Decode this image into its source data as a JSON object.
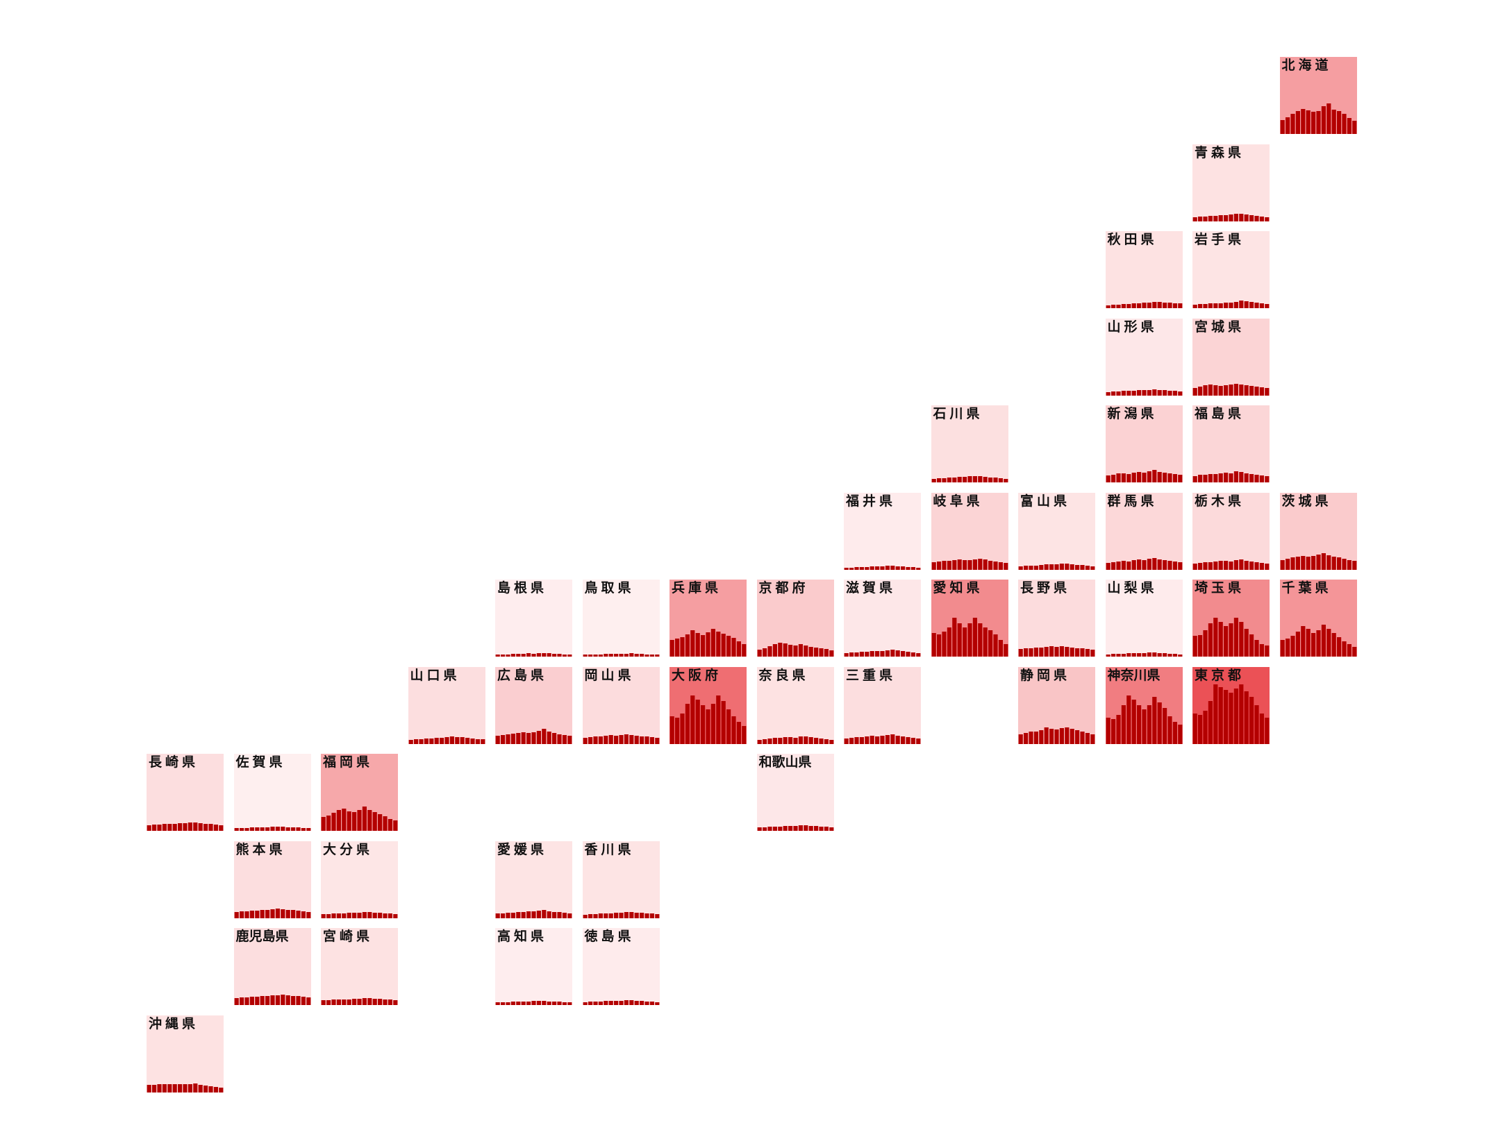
{
  "colors": {
    "bar": "#b30000",
    "text": "#111111"
  },
  "prefectures": [
    {
      "name": "北海道",
      "col": 13,
      "row": 0,
      "shade": 0.45,
      "series": [
        20,
        24,
        29,
        33,
        36,
        34,
        32,
        33,
        40,
        44,
        35,
        33,
        29,
        23,
        19
      ]
    },
    {
      "name": "青森県",
      "col": 12,
      "row": 1,
      "shade": 0.1,
      "series": [
        6,
        7,
        7,
        8,
        8,
        9,
        9,
        10,
        11,
        11,
        10,
        9,
        8,
        7,
        6
      ]
    },
    {
      "name": "秋田県",
      "col": 11,
      "row": 2,
      "shade": 0.1,
      "series": [
        4,
        5,
        5,
        6,
        6,
        7,
        7,
        8,
        8,
        9,
        9,
        8,
        8,
        7,
        7
      ]
    },
    {
      "name": "岩手県",
      "col": 12,
      "row": 2,
      "shade": 0.09,
      "series": [
        5,
        6,
        6,
        7,
        7,
        7,
        8,
        8,
        9,
        11,
        10,
        9,
        8,
        7,
        6
      ]
    },
    {
      "name": "山形県",
      "col": 11,
      "row": 3,
      "shade": 0.07,
      "series": [
        5,
        6,
        6,
        7,
        7,
        7,
        8,
        8,
        8,
        9,
        8,
        8,
        7,
        7,
        6
      ]
    },
    {
      "name": "宮城県",
      "col": 12,
      "row": 3,
      "shade": 0.17,
      "series": [
        11,
        13,
        15,
        16,
        15,
        14,
        15,
        16,
        17,
        16,
        15,
        14,
        13,
        12,
        11
      ]
    },
    {
      "name": "石川県",
      "col": 9,
      "row": 4,
      "shade": 0.11,
      "series": [
        5,
        6,
        6,
        7,
        7,
        8,
        8,
        9,
        9,
        9,
        8,
        7,
        7,
        6,
        5
      ]
    },
    {
      "name": "新潟県",
      "col": 11,
      "row": 4,
      "shade": 0.18,
      "series": [
        10,
        11,
        13,
        13,
        12,
        14,
        15,
        14,
        16,
        18,
        15,
        14,
        13,
        12,
        11
      ]
    },
    {
      "name": "福島県",
      "col": 12,
      "row": 4,
      "shade": 0.16,
      "series": [
        9,
        11,
        11,
        12,
        12,
        13,
        14,
        13,
        16,
        15,
        13,
        12,
        11,
        10,
        9
      ]
    },
    {
      "name": "福井県",
      "col": 8,
      "row": 5,
      "shade": 0.05,
      "series": [
        3,
        3,
        4,
        4,
        4,
        5,
        5,
        5,
        6,
        6,
        5,
        5,
        4,
        4,
        3
      ]
    },
    {
      "name": "岐阜県",
      "col": 9,
      "row": 5,
      "shade": 0.17,
      "series": [
        11,
        12,
        13,
        13,
        14,
        15,
        14,
        14,
        15,
        16,
        15,
        13,
        12,
        11,
        10
      ]
    },
    {
      "name": "富山県",
      "col": 10,
      "row": 5,
      "shade": 0.09,
      "series": [
        5,
        6,
        6,
        6,
        7,
        8,
        8,
        8,
        9,
        9,
        8,
        7,
        7,
        6,
        5
      ]
    },
    {
      "name": "群馬県",
      "col": 11,
      "row": 5,
      "shade": 0.15,
      "series": [
        10,
        11,
        12,
        13,
        12,
        14,
        15,
        14,
        16,
        17,
        15,
        14,
        13,
        12,
        11
      ]
    },
    {
      "name": "栃木県",
      "col": 12,
      "row": 5,
      "shade": 0.14,
      "series": [
        9,
        10,
        11,
        11,
        12,
        13,
        13,
        12,
        14,
        15,
        13,
        12,
        11,
        10,
        9
      ]
    },
    {
      "name": "茨城県",
      "col": 13,
      "row": 5,
      "shade": 0.22,
      "series": [
        14,
        16,
        18,
        19,
        20,
        19,
        20,
        22,
        24,
        21,
        19,
        18,
        16,
        14,
        13
      ]
    },
    {
      "name": "島根県",
      "col": 4,
      "row": 6,
      "shade": 0.04,
      "series": [
        3,
        3,
        3,
        4,
        4,
        4,
        5,
        4,
        5,
        5,
        5,
        4,
        4,
        3,
        3
      ]
    },
    {
      "name": "鳥取県",
      "col": 5,
      "row": 6,
      "shade": 0.03,
      "series": [
        3,
        3,
        3,
        3,
        4,
        4,
        4,
        4,
        4,
        5,
        4,
        4,
        3,
        3,
        3
      ]
    },
    {
      "name": "兵庫県",
      "col": 6,
      "row": 6,
      "shade": 0.45,
      "series": [
        24,
        26,
        28,
        32,
        38,
        34,
        31,
        35,
        40,
        36,
        33,
        30,
        27,
        22,
        18
      ]
    },
    {
      "name": "京都府",
      "col": 7,
      "row": 6,
      "shade": 0.22,
      "series": [
        10,
        12,
        15,
        18,
        20,
        19,
        17,
        16,
        18,
        16,
        14,
        13,
        12,
        11,
        9
      ]
    },
    {
      "name": "滋賀県",
      "col": 8,
      "row": 6,
      "shade": 0.07,
      "series": [
        5,
        6,
        6,
        7,
        7,
        8,
        8,
        8,
        9,
        10,
        9,
        8,
        7,
        6,
        5
      ]
    },
    {
      "name": "愛知県",
      "col": 9,
      "row": 6,
      "shade": 0.55,
      "series": [
        34,
        32,
        36,
        42,
        56,
        48,
        42,
        48,
        56,
        48,
        42,
        38,
        32,
        24,
        18
      ]
    },
    {
      "name": "長野県",
      "col": 10,
      "row": 6,
      "shade": 0.13,
      "series": [
        11,
        12,
        12,
        13,
        13,
        14,
        15,
        14,
        15,
        14,
        13,
        12,
        12,
        11,
        10
      ]
    },
    {
      "name": "山梨県",
      "col": 11,
      "row": 6,
      "shade": 0.05,
      "series": [
        3,
        4,
        4,
        4,
        5,
        5,
        5,
        5,
        6,
        6,
        5,
        5,
        4,
        4,
        3
      ]
    },
    {
      "name": "埼玉県",
      "col": 12,
      "row": 6,
      "shade": 0.55,
      "series": [
        30,
        31,
        38,
        48,
        56,
        50,
        44,
        48,
        56,
        50,
        40,
        32,
        24,
        18,
        16
      ]
    },
    {
      "name": "千葉県",
      "col": 13,
      "row": 6,
      "shade": 0.5,
      "series": [
        24,
        26,
        30,
        36,
        44,
        40,
        34,
        38,
        46,
        40,
        34,
        28,
        22,
        18,
        14
      ]
    },
    {
      "name": "山口県",
      "col": 3,
      "row": 7,
      "shade": 0.12,
      "series": [
        6,
        7,
        7,
        8,
        8,
        9,
        9,
        10,
        11,
        10,
        10,
        9,
        8,
        7,
        7
      ]
    },
    {
      "name": "広島県",
      "col": 4,
      "row": 7,
      "shade": 0.2,
      "series": [
        12,
        13,
        14,
        15,
        16,
        17,
        16,
        17,
        19,
        22,
        18,
        16,
        14,
        13,
        12
      ]
    },
    {
      "name": "岡山県",
      "col": 5,
      "row": 7,
      "shade": 0.13,
      "series": [
        9,
        10,
        11,
        11,
        12,
        13,
        12,
        13,
        14,
        13,
        12,
        11,
        11,
        10,
        9
      ]
    },
    {
      "name": "大阪府",
      "col": 6,
      "row": 7,
      "shade": 0.7,
      "series": [
        40,
        38,
        44,
        58,
        70,
        64,
        56,
        50,
        58,
        70,
        62,
        50,
        40,
        32,
        26
      ]
    },
    {
      "name": "奈良県",
      "col": 7,
      "row": 7,
      "shade": 0.1,
      "series": [
        6,
        7,
        8,
        9,
        9,
        10,
        10,
        9,
        11,
        11,
        10,
        9,
        8,
        7,
        6
      ]
    },
    {
      "name": "三重県",
      "col": 8,
      "row": 7,
      "shade": 0.12,
      "series": [
        8,
        9,
        10,
        10,
        11,
        12,
        11,
        12,
        13,
        14,
        12,
        11,
        10,
        9,
        8
      ]
    },
    {
      "name": "静岡県",
      "col": 10,
      "row": 7,
      "shade": 0.25,
      "series": [
        14,
        16,
        18,
        18,
        20,
        24,
        22,
        21,
        23,
        24,
        22,
        20,
        18,
        16,
        14
      ]
    },
    {
      "name": "神奈川県",
      "col": 11,
      "row": 7,
      "shade": 0.62,
      "series": [
        38,
        36,
        42,
        56,
        70,
        64,
        56,
        50,
        56,
        68,
        60,
        52,
        40,
        32,
        28
      ]
    },
    {
      "name": "東京都",
      "col": 12,
      "row": 7,
      "shade": 0.85,
      "series": [
        44,
        42,
        48,
        62,
        86,
        82,
        78,
        74,
        80,
        86,
        76,
        68,
        56,
        44,
        38
      ]
    },
    {
      "name": "長崎県",
      "col": 0,
      "row": 8,
      "shade": 0.12,
      "series": [
        8,
        9,
        9,
        10,
        10,
        10,
        11,
        11,
        12,
        12,
        11,
        10,
        10,
        9,
        8
      ]
    },
    {
      "name": "佐賀県",
      "col": 1,
      "row": 8,
      "shade": 0.03,
      "series": [
        4,
        4,
        4,
        5,
        5,
        5,
        5,
        6,
        6,
        6,
        5,
        5,
        5,
        4,
        4
      ]
    },
    {
      "name": "福岡県",
      "col": 2,
      "row": 8,
      "shade": 0.4,
      "series": [
        20,
        22,
        26,
        30,
        32,
        28,
        27,
        30,
        35,
        30,
        27,
        24,
        21,
        17,
        15
      ]
    },
    {
      "name": "和歌山県",
      "col": 7,
      "row": 8,
      "shade": 0.07,
      "series": [
        5,
        5,
        6,
        6,
        6,
        7,
        7,
        7,
        8,
        8,
        7,
        7,
        6,
        6,
        5
      ]
    },
    {
      "name": "熊本県",
      "col": 1,
      "row": 9,
      "shade": 0.12,
      "series": [
        9,
        10,
        10,
        11,
        11,
        12,
        12,
        13,
        14,
        13,
        12,
        12,
        11,
        10,
        9
      ]
    },
    {
      "name": "大分県",
      "col": 2,
      "row": 9,
      "shade": 0.08,
      "series": [
        6,
        6,
        7,
        7,
        7,
        8,
        8,
        8,
        9,
        9,
        8,
        8,
        7,
        7,
        6
      ]
    },
    {
      "name": "愛媛県",
      "col": 4,
      "row": 9,
      "shade": 0.09,
      "series": [
        7,
        7,
        8,
        8,
        9,
        9,
        10,
        10,
        11,
        12,
        10,
        9,
        9,
        8,
        7
      ]
    },
    {
      "name": "香川県",
      "col": 5,
      "row": 9,
      "shade": 0.09,
      "series": [
        5,
        6,
        6,
        7,
        7,
        7,
        8,
        8,
        9,
        9,
        8,
        8,
        7,
        7,
        6
      ]
    },
    {
      "name": "鹿児島県",
      "col": 1,
      "row": 10,
      "shade": 0.12,
      "series": [
        10,
        11,
        11,
        12,
        12,
        13,
        13,
        14,
        14,
        15,
        14,
        13,
        13,
        12,
        11
      ]
    },
    {
      "name": "宮崎県",
      "col": 2,
      "row": 10,
      "shade": 0.1,
      "series": [
        7,
        7,
        8,
        8,
        8,
        8,
        9,
        9,
        10,
        10,
        9,
        9,
        8,
        8,
        7
      ]
    },
    {
      "name": "高知県",
      "col": 4,
      "row": 10,
      "shade": 0.04,
      "series": [
        4,
        4,
        4,
        5,
        5,
        5,
        5,
        6,
        6,
        6,
        5,
        5,
        5,
        4,
        4
      ]
    },
    {
      "name": "徳島県",
      "col": 5,
      "row": 10,
      "shade": 0.05,
      "series": [
        4,
        5,
        5,
        5,
        6,
        6,
        6,
        6,
        7,
        7,
        6,
        6,
        5,
        5,
        4
      ]
    },
    {
      "name": "沖縄県",
      "col": 0,
      "row": 11,
      "shade": 0.1,
      "series": [
        11,
        11,
        12,
        12,
        12,
        12,
        12,
        12,
        12,
        13,
        11,
        10,
        9,
        8,
        7
      ]
    }
  ]
}
